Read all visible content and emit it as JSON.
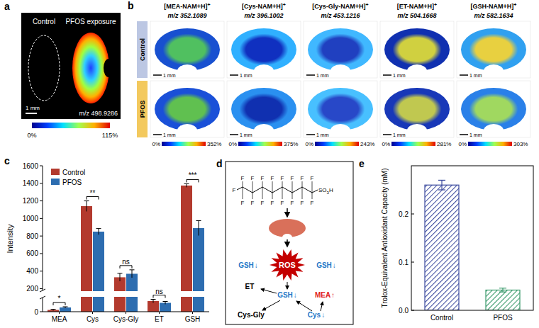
{
  "chart_data": [
    {
      "panel_label": "c",
      "type": "bar",
      "y_label": "Intensity",
      "categories": [
        "MEA",
        "Cys",
        "Cys-Gly",
        "ET",
        "GSH"
      ],
      "series": [
        {
          "name": "Control",
          "color": "#b33a2e",
          "values": [
            5,
            1140,
            330,
            30,
            1375
          ],
          "errors": [
            2,
            60,
            45,
            5,
            20
          ]
        },
        {
          "name": "PFOS",
          "color": "#2d6db0",
          "values": [
            12,
            850,
            370,
            25,
            890
          ],
          "errors": [
            2,
            35,
            45,
            4,
            85
          ]
        }
      ],
      "significance": [
        "*",
        "**",
        "ns",
        "ns",
        "***"
      ],
      "ylim": [
        0,
        1600
      ],
      "yticks": [
        0,
        200,
        400,
        600,
        800,
        1000,
        1200,
        1400,
        1600
      ],
      "y_break": [
        40,
        180
      ],
      "legend": "top-left"
    },
    {
      "panel_label": "e",
      "type": "bar",
      "y_label": "Trolox-Equivalent Antioxidant Capacity (mM)",
      "categories": [
        "Control",
        "PFOS"
      ],
      "values": [
        0.26,
        0.042
      ],
      "errors": [
        0.01,
        0.004
      ],
      "colors": [
        "#3b4a9e",
        "#3a9a6c"
      ],
      "ylim": [
        0,
        0.3
      ],
      "yticks": [
        {
          "value": 0,
          "label": "0.0"
        },
        {
          "value": 0.1,
          "label": "0.1"
        },
        {
          "value": 0.2,
          "label": "0.2"
        }
      ]
    }
  ],
  "panel_a": {
    "panel_label": "a",
    "groups": [
      "Control",
      "PFOS exposure"
    ],
    "scale_bar": "1 mm",
    "ion": "m/z 498.9286",
    "colorbar_range": [
      0,
      115
    ],
    "colorbar_ticks": [
      {
        "value": 0,
        "label": "0%"
      },
      {
        "value": 115,
        "label": "115%"
      }
    ]
  },
  "panel_b": {
    "panel_label": "b",
    "rows": [
      "Control",
      "PFOS"
    ],
    "scale_bar": "1 mm",
    "columns": [
      {
        "ion": "[MEA-NAM+H]",
        "charge": "+",
        "mz": "m/z 352.1089",
        "colorbar_range": [
          0,
          352
        ],
        "colorbar_ticks": [
          {
            "value": 0,
            "label": "0%"
          },
          {
            "value": 352,
            "label": "352%"
          }
        ]
      },
      {
        "ion": "[Cys-NAM+H]",
        "charge": "+",
        "mz": "m/z 396.1002",
        "colorbar_range": [
          0,
          375
        ],
        "colorbar_ticks": [
          {
            "value": 0,
            "label": "0%"
          },
          {
            "value": 375,
            "label": "375%"
          }
        ]
      },
      {
        "ion": "[Cys-Gly-NAM+H]",
        "charge": "+",
        "mz": "m/z 453.1216",
        "colorbar_range": [
          0,
          243
        ],
        "colorbar_ticks": [
          {
            "value": 0,
            "label": "0%"
          },
          {
            "value": 243,
            "label": "243%"
          }
        ]
      },
      {
        "ion": "[ET-NAM+H]",
        "charge": "+",
        "mz": "m/z 504.1668",
        "colorbar_range": [
          0,
          281
        ],
        "colorbar_ticks": [
          {
            "value": 0,
            "label": "0%"
          },
          {
            "value": 281,
            "label": "281%"
          }
        ]
      },
      {
        "ion": "[GSH-NAM+H]",
        "charge": "+",
        "mz": "m/z 582.1634",
        "colorbar_range": [
          0,
          303
        ],
        "colorbar_ticks": [
          {
            "value": 0,
            "label": "0%"
          },
          {
            "value": 303,
            "label": "303%"
          }
        ]
      }
    ]
  },
  "panel_d": {
    "panel_label": "d",
    "atom": "F",
    "head": "SO",
    "head_sub": "3",
    "head_end": "H",
    "ros": "ROS",
    "nodes": [
      {
        "label": "GSH",
        "trend": "↓",
        "color": "#1f78c8"
      },
      {
        "label": "GSH",
        "trend": "↓",
        "color": "#1f78c8"
      },
      {
        "label": "ET",
        "color": "#000000"
      },
      {
        "label": "GSH",
        "trend": "↓",
        "color": "#1f78c8"
      },
      {
        "label": "MEA",
        "trend": "↑",
        "color": "#e02020"
      },
      {
        "label": "Cys-Gly",
        "color": "#000000"
      },
      {
        "label": "Cys",
        "trend": "↓",
        "color": "#1f78c8"
      }
    ]
  }
}
